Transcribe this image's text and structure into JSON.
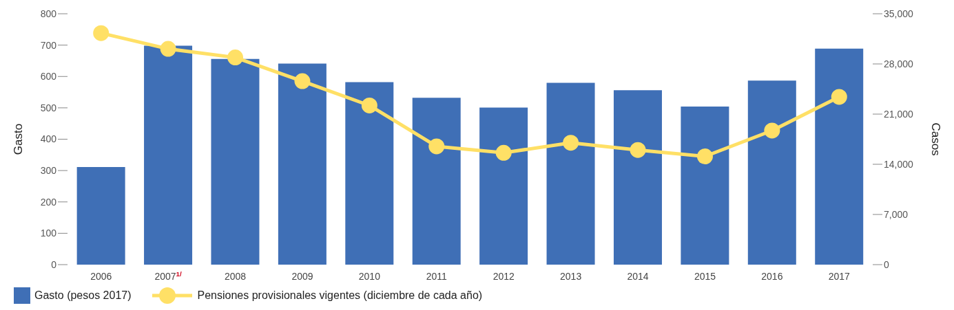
{
  "chart_data": {
    "type": "bar",
    "categories": [
      "2006",
      "2007$^{1/}$",
      "2008",
      "2009",
      "2010",
      "2011",
      "2012",
      "2013",
      "2014",
      "2015",
      "2016",
      "2017"
    ],
    "series": [
      {
        "name": "Gasto (pesos 2017)",
        "color": "#3f6fb6",
        "values": [
          311,
          698,
          656,
          641,
          582,
          532,
          501,
          580,
          556,
          504,
          587,
          689
        ]
      },
      {
        "name": "Pensiones provisionales vigentes (diciembre de cada año)",
        "type": "line",
        "axis": "y2",
        "color": "#ffe066",
        "marker": "circle",
        "values": [
          32300,
          30100,
          28900,
          25600,
          22200,
          16500,
          15600,
          17000,
          16000,
          15100,
          18700,
          23400
        ]
      }
    ],
    "ylabel": "Gasto",
    "y2label": "Casos",
    "ylim": [
      0,
      800
    ],
    "yticks": [
      0,
      100,
      200,
      300,
      400,
      500,
      600,
      700,
      800
    ],
    "y2lim": [
      0,
      35000
    ],
    "y2ticks": [
      0,
      {
        "value": 7000,
        "label": "7,000"
      },
      {
        "value": 14000,
        "label": "14,000"
      },
      {
        "value": 21000,
        "label": "21,000"
      },
      {
        "value": 28000,
        "label": "28,000"
      },
      {
        "value": 35000,
        "label": "35,000"
      }
    ],
    "legend": "bottom left"
  }
}
